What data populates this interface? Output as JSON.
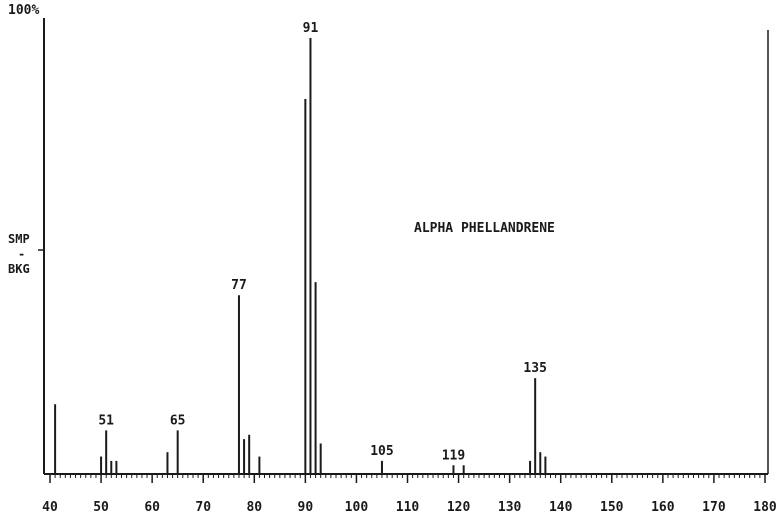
{
  "chart_data": {
    "type": "bar",
    "title": "ALPHA PHELLANDRENE",
    "ylabel_top": "100%",
    "side_label": [
      "SMP",
      "-",
      "BKG"
    ],
    "xlim": [
      40,
      180
    ],
    "ylim": [
      0,
      100
    ],
    "xticks": [
      40,
      50,
      60,
      70,
      80,
      90,
      100,
      110,
      120,
      130,
      140,
      150,
      160,
      170,
      180
    ],
    "grid": false,
    "peaks": [
      {
        "x": 41,
        "y": 16
      },
      {
        "x": 50,
        "y": 4
      },
      {
        "x": 51,
        "y": 10
      },
      {
        "x": 52,
        "y": 3
      },
      {
        "x": 53,
        "y": 3
      },
      {
        "x": 63,
        "y": 5
      },
      {
        "x": 65,
        "y": 10
      },
      {
        "x": 77,
        "y": 41
      },
      {
        "x": 78,
        "y": 8
      },
      {
        "x": 79,
        "y": 9
      },
      {
        "x": 81,
        "y": 4
      },
      {
        "x": 90,
        "y": 86
      },
      {
        "x": 91,
        "y": 100
      },
      {
        "x": 92,
        "y": 44
      },
      {
        "x": 93,
        "y": 7
      },
      {
        "x": 105,
        "y": 3
      },
      {
        "x": 119,
        "y": 2
      },
      {
        "x": 121,
        "y": 2
      },
      {
        "x": 134,
        "y": 3
      },
      {
        "x": 135,
        "y": 22
      },
      {
        "x": 136,
        "y": 5
      },
      {
        "x": 137,
        "y": 4
      }
    ],
    "peak_labels": [
      {
        "x": 51,
        "text": "51"
      },
      {
        "x": 65,
        "text": "65"
      },
      {
        "x": 77,
        "text": "77"
      },
      {
        "x": 91,
        "text": "91"
      },
      {
        "x": 105,
        "text": "105"
      },
      {
        "x": 119,
        "text": "119"
      },
      {
        "x": 135,
        "text": "135"
      }
    ]
  }
}
